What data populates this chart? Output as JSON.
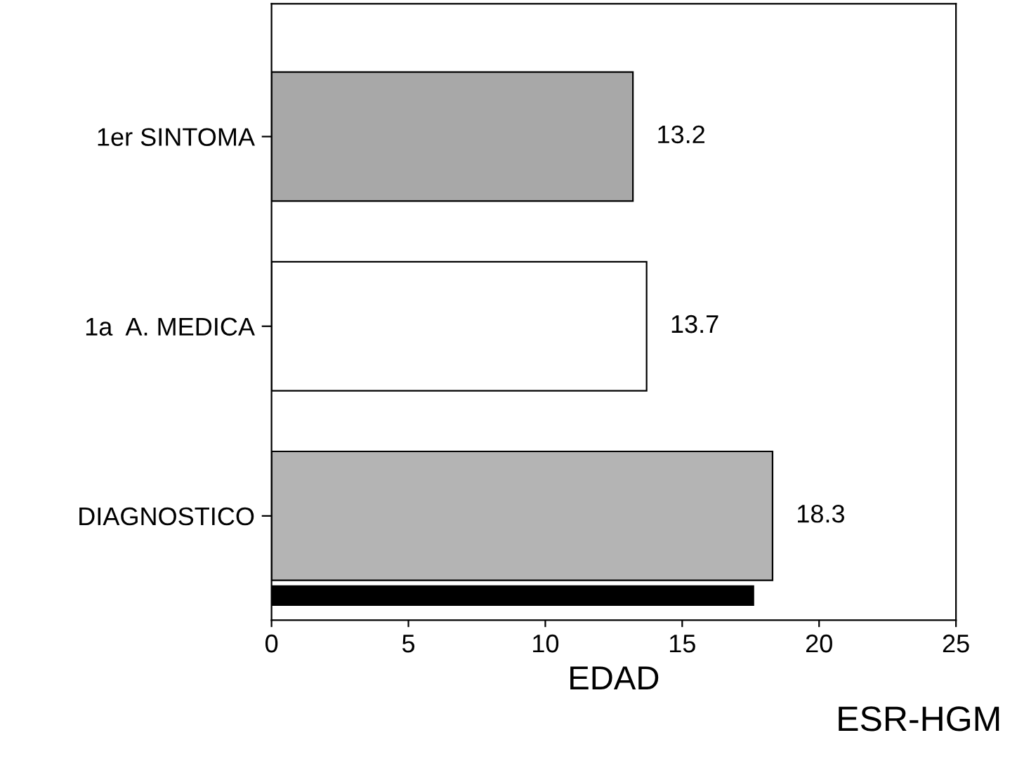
{
  "chart_data": {
    "type": "bar",
    "orientation": "horizontal",
    "xlabel": "EDAD",
    "categories": [
      "1er SINTOMA",
      "1a  A. MEDICA",
      "DIAGNOSTICO"
    ],
    "series": [
      {
        "color": "#a8a8a8",
        "colors": [
          "#a8a8a8",
          "#ffffff",
          "#b4b4b4"
        ],
        "values": [
          13.2,
          13.7,
          18.3
        ],
        "value_labels": [
          "13.2",
          "13.7",
          "18.3"
        ]
      },
      {
        "color": "#000000",
        "values": [
          null,
          null,
          17.6
        ]
      }
    ],
    "xlim": [
      0,
      25
    ],
    "xticks": [
      0,
      5,
      10,
      15,
      20,
      25
    ],
    "annotations": [
      "ESR-HGM"
    ]
  }
}
